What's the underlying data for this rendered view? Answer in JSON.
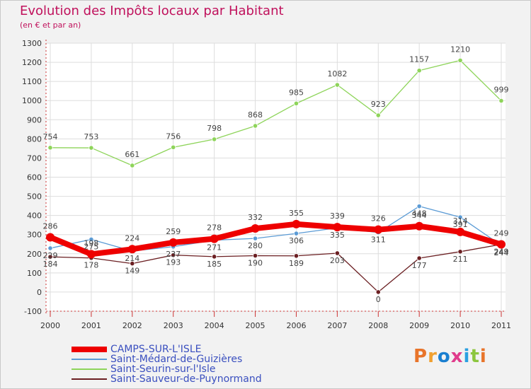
{
  "header": {
    "title": "Evolution des Impôts locaux par Habitant",
    "subtitle": "(en € et par an)"
  },
  "chart_data": {
    "type": "line",
    "x": [
      "2000",
      "2001",
      "2002",
      "2003",
      "2004",
      "2005",
      "2006",
      "2007",
      "2008",
      "2009",
      "2010",
      "2011"
    ],
    "ylim": [
      -100,
      1300
    ],
    "yticks": [
      -100,
      0,
      100,
      200,
      300,
      400,
      500,
      600,
      700,
      800,
      900,
      1000,
      1100,
      1200,
      1300
    ],
    "grid": true,
    "legend_position": "bottom-left",
    "series": [
      {
        "name": "CAMPS-SUR-L'ISLE",
        "color": "#ee0000",
        "values": [
          286,
          198,
          224,
          259,
          278,
          332,
          355,
          339,
          326,
          344,
          314,
          249
        ]
      },
      {
        "name": "Saint-Médard-de-Guizières",
        "color": "#5b9bd5",
        "values": [
          229,
          275,
          214,
          237,
          271,
          280,
          306,
          335,
          311,
          448,
          391,
          244
        ]
      },
      {
        "name": "Saint-Seurin-sur-l'Isle",
        "color": "#8ed45a",
        "values": [
          754,
          753,
          661,
          756,
          798,
          868,
          985,
          1082,
          923,
          1157,
          1210,
          999
        ]
      },
      {
        "name": "Saint-Sauveur-de-Puynormand",
        "color": "#6b1f22",
        "values": [
          184,
          178,
          149,
          193,
          185,
          190,
          189,
          203,
          0,
          177,
          211,
          249
        ]
      }
    ]
  },
  "legend": {
    "items": [
      {
        "label": "CAMPS-SUR-L'ISLE",
        "color": "#ee0000"
      },
      {
        "label": "Saint-Médard-de-Guizières",
        "color": "#5b9bd5"
      },
      {
        "label": "Saint-Seurin-sur-l'Isle",
        "color": "#8ed45a"
      },
      {
        "label": "Saint-Sauveur-de-Puynormand",
        "color": "#6b1f22"
      }
    ]
  },
  "logo": {
    "text": "Proxiti",
    "letter_colors": [
      "#e8742a",
      "#f0a030",
      "#1a7fd0",
      "#e03c8c",
      "#2aa0e0",
      "#8cc63e",
      "#e8742a"
    ]
  }
}
